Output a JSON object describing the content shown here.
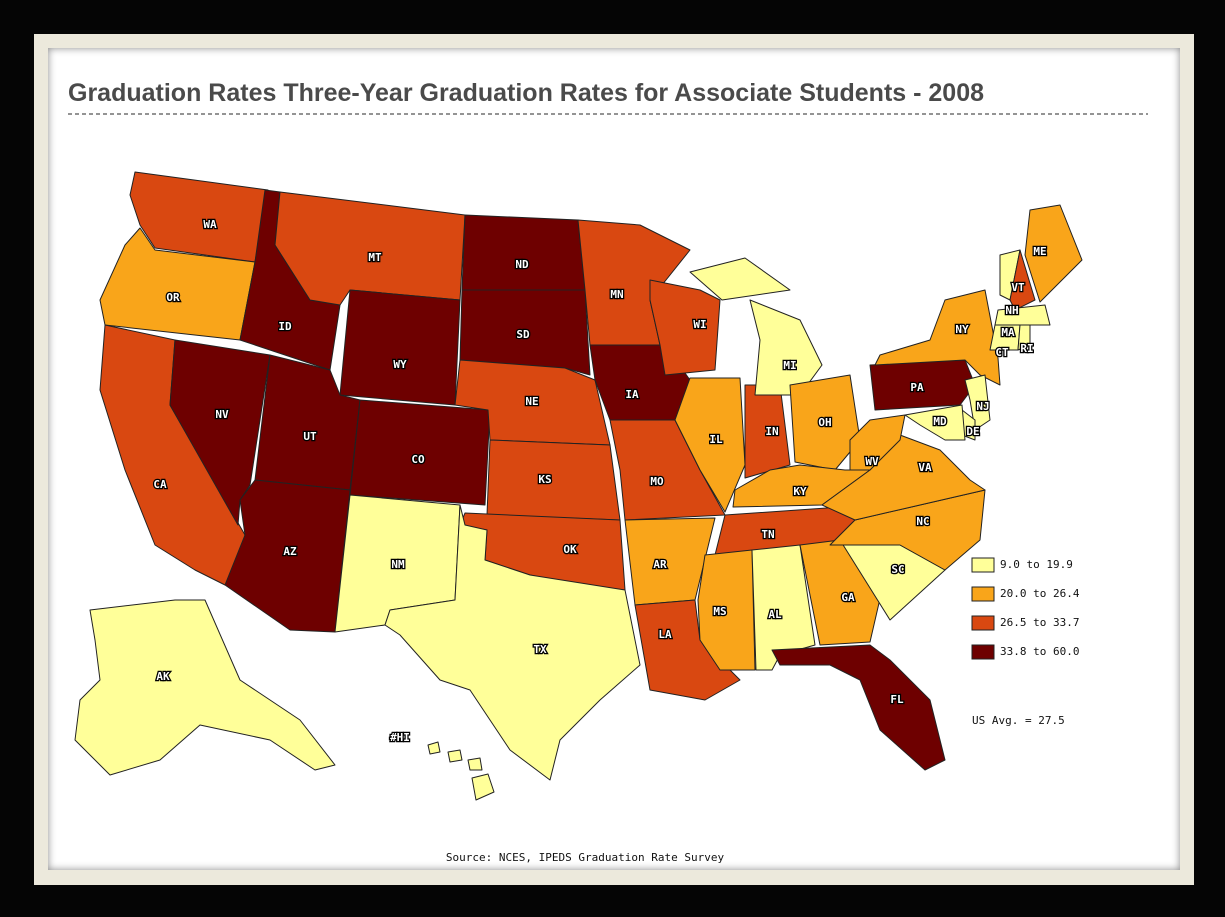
{
  "title": "Graduation Rates Three-Year Graduation Rates for Associate Students - 2008",
  "legend": [
    {
      "label": "9.0 to 19.9",
      "color": "#ffff99"
    },
    {
      "label": "20.0 to 26.4",
      "color": "#f9a51a"
    },
    {
      "label": "26.5 to 33.7",
      "color": "#d94811"
    },
    {
      "label": "33.8 to 60.0",
      "color": "#6e0000"
    }
  ],
  "us_average": "US Avg. = 27.5",
  "source": "Source: NCES, IPEDS Graduation Rate Survey",
  "states": [
    {
      "label": "WA",
      "color": "#d94811"
    },
    {
      "label": "OR",
      "color": "#f9a51a"
    },
    {
      "label": "CA",
      "color": "#d94811"
    },
    {
      "label": "NV",
      "color": "#6e0000"
    },
    {
      "label": "ID",
      "color": "#6e0000"
    },
    {
      "label": "MT",
      "color": "#d94811"
    },
    {
      "label": "WY",
      "color": "#6e0000"
    },
    {
      "label": "UT",
      "color": "#6e0000"
    },
    {
      "label": "CO",
      "color": "#6e0000"
    },
    {
      "label": "AZ",
      "color": "#6e0000"
    },
    {
      "label": "NM",
      "color": "#ffff99"
    },
    {
      "label": "ND",
      "color": "#6e0000"
    },
    {
      "label": "SD",
      "color": "#6e0000"
    },
    {
      "label": "NE",
      "color": "#d94811"
    },
    {
      "label": "KS",
      "color": "#d94811"
    },
    {
      "label": "OK",
      "color": "#d94811"
    },
    {
      "label": "TX",
      "color": "#ffff99"
    },
    {
      "label": "MN",
      "color": "#d94811"
    },
    {
      "label": "IA",
      "color": "#6e0000"
    },
    {
      "label": "MO",
      "color": "#d94811"
    },
    {
      "label": "AR",
      "color": "#f9a51a"
    },
    {
      "label": "LA",
      "color": "#d94811"
    },
    {
      "label": "WI",
      "color": "#d94811"
    },
    {
      "label": "IL",
      "color": "#f9a51a"
    },
    {
      "label": "IN",
      "color": "#d94811"
    },
    {
      "label": "MI",
      "color": "#ffff99"
    },
    {
      "label": "OH",
      "color": "#f9a51a"
    },
    {
      "label": "KY",
      "color": "#f9a51a"
    },
    {
      "label": "TN",
      "color": "#d94811"
    },
    {
      "label": "MS",
      "color": "#f9a51a"
    },
    {
      "label": "AL",
      "color": "#ffff99"
    },
    {
      "label": "GA",
      "color": "#f9a51a"
    },
    {
      "label": "FL",
      "color": "#6e0000"
    },
    {
      "label": "SC",
      "color": "#ffff99"
    },
    {
      "label": "NC",
      "color": "#f9a51a"
    },
    {
      "label": "VA",
      "color": "#f9a51a"
    },
    {
      "label": "WV",
      "color": "#f9a51a"
    },
    {
      "label": "PA",
      "color": "#6e0000"
    },
    {
      "label": "NY",
      "color": "#f9a51a"
    },
    {
      "label": "VT",
      "color": "#ffff99"
    },
    {
      "label": "NH",
      "color": "#d94811"
    },
    {
      "label": "ME",
      "color": "#f9a51a"
    },
    {
      "label": "MA",
      "color": "#ffff99"
    },
    {
      "label": "CT",
      "color": "#ffff99"
    },
    {
      "label": "RI",
      "color": "#ffff99"
    },
    {
      "label": "NJ",
      "color": "#ffff99"
    },
    {
      "label": "DE",
      "color": "#ffff99"
    },
    {
      "label": "MD",
      "color": "#ffff99"
    },
    {
      "label": "AK",
      "color": "#ffff99"
    },
    {
      "label": "#HI",
      "color": "#ffff99"
    }
  ]
}
